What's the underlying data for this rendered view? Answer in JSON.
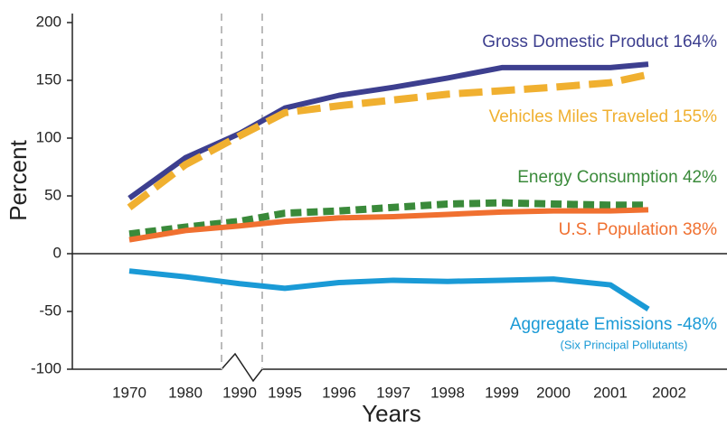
{
  "chart_data": {
    "type": "line",
    "y_label": "Percent",
    "x_label": "Years",
    "categories": [
      "1970",
      "1980",
      "1990",
      "1995",
      "1996",
      "1997",
      "1998",
      "1999",
      "2000",
      "2001",
      "2002"
    ],
    "ylim": [
      -100,
      200
    ],
    "yticks": [
      200,
      150,
      100,
      50,
      0,
      -50,
      -100
    ],
    "series": [
      {
        "name": "Gross Domestic Product 164%",
        "color": "#3d3f8f",
        "dashed": false,
        "values": [
          48,
          83,
          104,
          126,
          137,
          144,
          152,
          161,
          161,
          161,
          164
        ]
      },
      {
        "name": "Vehicles Miles Traveled 155%",
        "color": "#f0b030",
        "dashed": true,
        "values": [
          40,
          77,
          102,
          122,
          128,
          133,
          138,
          141,
          144,
          148,
          155
        ]
      },
      {
        "name": "Energy Consumption 42%",
        "color": "#3a8a3a",
        "dashed": true,
        "values": [
          17,
          23,
          28,
          35,
          37,
          40,
          43,
          44,
          43,
          42,
          42
        ]
      },
      {
        "name": "U.S. Population 38%",
        "color": "#f07030",
        "dashed": false,
        "values": [
          12,
          20,
          24,
          28,
          31,
          32,
          34,
          36,
          37,
          37,
          38
        ]
      },
      {
        "name": "Aggregate Emissions  -48%",
        "color": "#1a9ad6",
        "dashed": false,
        "note": "(Six Principal Pollutants)",
        "values": [
          -15,
          -20,
          -26,
          -30,
          -25,
          -23,
          -24,
          -23,
          -22,
          -27,
          -48
        ]
      }
    ]
  }
}
